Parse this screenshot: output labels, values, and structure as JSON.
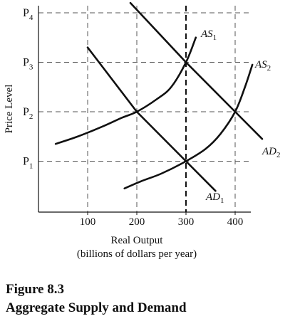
{
  "chart_data": {
    "type": "line",
    "xlabel": "Real Output",
    "xlabel_sub": "(billions of dollars per year)",
    "ylabel": "Price Level",
    "x_ticks": [
      100,
      200,
      300,
      400
    ],
    "y_ticks": [
      {
        "label": "P",
        "sub": "1",
        "value": 1
      },
      {
        "label": "P",
        "sub": "2",
        "value": 2
      },
      {
        "label": "P",
        "sub": "3",
        "value": 3
      },
      {
        "label": "P",
        "sub": "4",
        "value": 4
      }
    ],
    "xlim": [
      0,
      450
    ],
    "ylim": [
      0,
      4.2
    ],
    "dashed_grid": {
      "x": [
        100,
        200,
        300,
        400
      ],
      "y": [
        1,
        2,
        3,
        4
      ],
      "bold_x": 300
    },
    "series": [
      {
        "name": "AS",
        "sub": "1",
        "kind": "supply",
        "x": [
          35,
          80,
          130,
          170,
          200,
          240,
          270,
          300,
          320
        ],
        "y": [
          1.35,
          1.5,
          1.7,
          1.88,
          2.0,
          2.25,
          2.5,
          3.0,
          3.5
        ]
      },
      {
        "name": "AD",
        "sub": "1",
        "kind": "demand",
        "x": [
          100,
          200,
          300,
          360
        ],
        "y": [
          3.3,
          2.0,
          1.0,
          0.4
        ]
      },
      {
        "name": "AS",
        "sub": "2",
        "kind": "supply",
        "x": [
          175,
          210,
          250,
          300,
          340,
          370,
          400,
          420,
          435
        ],
        "y": [
          0.45,
          0.6,
          0.75,
          1.0,
          1.25,
          1.55,
          2.0,
          2.5,
          2.95
        ]
      },
      {
        "name": "AD",
        "sub": "2",
        "kind": "demand",
        "x": [
          187,
          300,
          400,
          455
        ],
        "y": [
          4.2,
          3.0,
          2.0,
          1.45
        ]
      }
    ],
    "equilibria": [
      {
        "x": 200,
        "y": 2
      },
      {
        "x": 300,
        "y": 3
      },
      {
        "x": 300,
        "y": 1
      },
      {
        "x": 400,
        "y": 2
      }
    ]
  },
  "caption": {
    "figure_number": "Figure 8.3",
    "title": "Aggregate Supply and Demand"
  }
}
